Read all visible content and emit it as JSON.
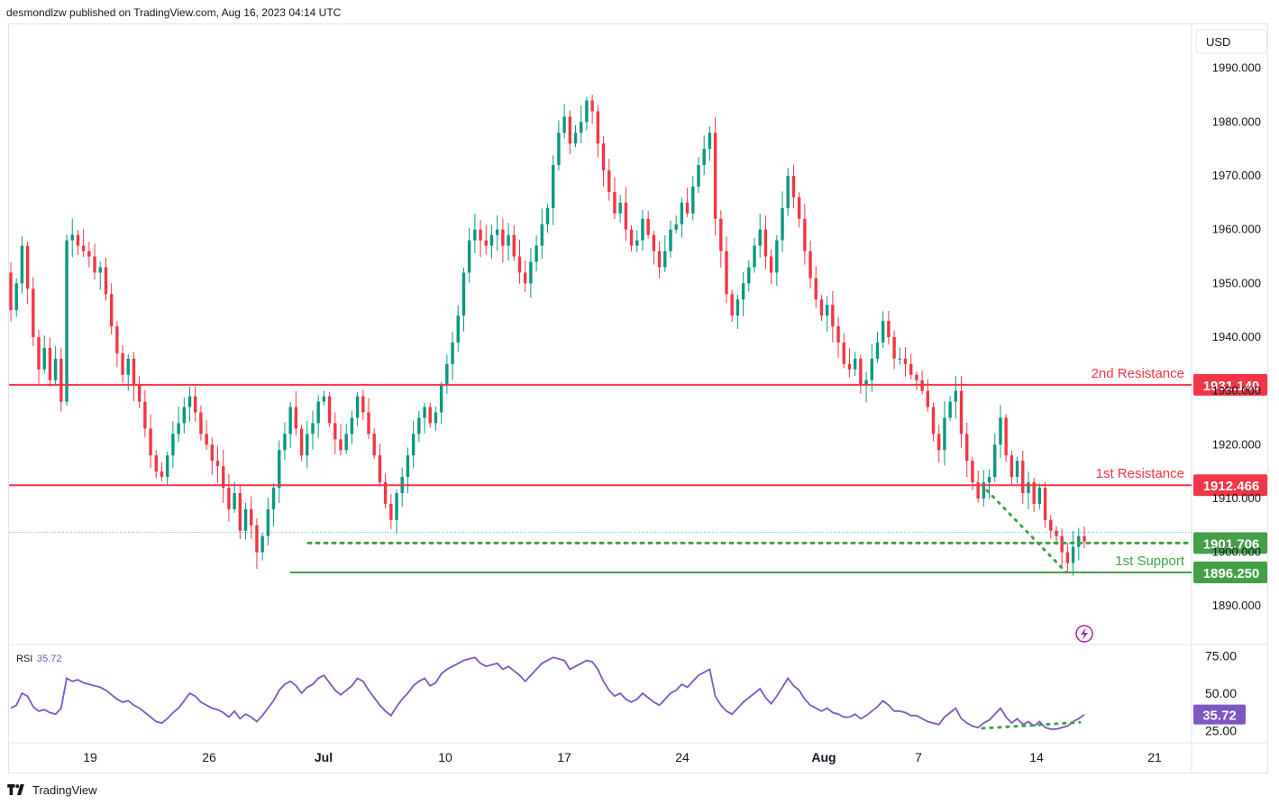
{
  "header": {
    "text": "desmondlzw published on TradingView.com, Aug 16, 2023 04:14 UTC"
  },
  "footer": {
    "brand": "TradingView"
  },
  "colors": {
    "up": "#089981",
    "down": "#f23645",
    "resistance": "#f23645",
    "support": "#43a047",
    "rsi": "#7e57c2",
    "grid": "#f0f3fa",
    "axis_text": "#131722"
  },
  "chart_data": [
    {
      "type": "candlestick",
      "currency_label": "USD",
      "ylim": [
        1883,
        1998
      ],
      "y_ticks": [
        "1890.000",
        "1900.000",
        "1910.000",
        "1920.000",
        "1930.000",
        "1940.000",
        "1950.000",
        "1960.000",
        "1970.000",
        "1980.000",
        "1990.000"
      ],
      "x_ticks": [
        "19",
        "26",
        "Jul",
        "10",
        "17",
        "24",
        "Aug",
        "7",
        "14",
        "21"
      ],
      "x_ticks_bold": [
        "Jul",
        "Aug"
      ],
      "close_series": [
        1945,
        1950,
        1957,
        1949,
        1940,
        1934,
        1938,
        1932,
        1936,
        1928,
        1958,
        1959,
        1957,
        1956,
        1955,
        1952,
        1953,
        1948,
        1942,
        1937,
        1933,
        1936,
        1931,
        1928,
        1923,
        1918,
        1915,
        1914,
        1918,
        1922,
        1924,
        1927,
        1929,
        1926,
        1922,
        1920,
        1917,
        1916,
        1912,
        1908,
        1911,
        1904,
        1908,
        1905,
        1900,
        1903,
        1908,
        1912,
        1919,
        1922,
        1927,
        1923,
        1918,
        1922,
        1924,
        1928,
        1929,
        1924,
        1921,
        1919,
        1922,
        1925,
        1929,
        1926,
        1922,
        1918,
        1913,
        1909,
        1906,
        1911,
        1914,
        1918,
        1922,
        1925,
        1927,
        1924,
        1926,
        1931,
        1935,
        1939,
        1944,
        1952,
        1958,
        1960,
        1958,
        1957,
        1959,
        1960,
        1957,
        1959,
        1955,
        1952,
        1950,
        1954,
        1957,
        1961,
        1964,
        1972,
        1978,
        1981,
        1976,
        1978,
        1980,
        1984,
        1982,
        1976,
        1971,
        1967,
        1963,
        1965,
        1960,
        1957,
        1958,
        1962,
        1959,
        1956,
        1953,
        1956,
        1960,
        1961,
        1965,
        1963,
        1968,
        1972,
        1975,
        1978,
        1962,
        1956,
        1948,
        1944,
        1947,
        1950,
        1953,
        1957,
        1960,
        1955,
        1952,
        1958,
        1964,
        1970,
        1966,
        1962,
        1956,
        1951,
        1947,
        1944,
        1946,
        1942,
        1939,
        1935,
        1934,
        1936,
        1931,
        1932,
        1936,
        1939,
        1943,
        1940,
        1936,
        1936,
        1935,
        1933,
        1932,
        1930,
        1927,
        1922,
        1919,
        1925,
        1928,
        1930,
        1922,
        1917,
        1913,
        1910,
        1913,
        1914,
        1920,
        1925,
        1918,
        1914,
        1917,
        1911,
        1913,
        1909,
        1912,
        1906,
        1904,
        1903,
        1900,
        1898,
        1901,
        1903,
        1902
      ],
      "lines": [
        {
          "label": "2nd Resistance",
          "value": "1931.140",
          "level": 1931.14,
          "color": "#f23645",
          "style": "solid"
        },
        {
          "label": "1st Resistance",
          "value": "1912.466",
          "level": 1912.466,
          "color": "#f23645",
          "style": "solid"
        },
        {
          "label": "",
          "value": "1901.706",
          "level": 1901.706,
          "color": "#43a047",
          "style": "dotted"
        },
        {
          "label": "1st Support",
          "value": "1896.250",
          "level": 1896.25,
          "color": "#43a047",
          "style": "solid"
        }
      ]
    },
    {
      "type": "line",
      "indicator": "RSI",
      "current_value": "35.72",
      "ylim": [
        18,
        82
      ],
      "y_ticks": [
        "25.00",
        "50.00",
        "75.00"
      ],
      "series": [
        40,
        42,
        50,
        48,
        41,
        38,
        39,
        37,
        36,
        40,
        60,
        58,
        59,
        57,
        56,
        55,
        54,
        52,
        49,
        46,
        44,
        45,
        42,
        40,
        37,
        34,
        31,
        30,
        33,
        37,
        40,
        45,
        50,
        48,
        44,
        42,
        40,
        39,
        37,
        34,
        38,
        33,
        36,
        34,
        31,
        35,
        40,
        45,
        52,
        56,
        58,
        55,
        50,
        54,
        56,
        60,
        62,
        57,
        52,
        49,
        52,
        55,
        60,
        58,
        52,
        47,
        42,
        38,
        35,
        41,
        46,
        50,
        55,
        58,
        60,
        55,
        57,
        63,
        66,
        68,
        70,
        72,
        73,
        74,
        70,
        68,
        69,
        70,
        66,
        68,
        65,
        62,
        58,
        62,
        66,
        70,
        72,
        74,
        73,
        72,
        66,
        68,
        70,
        72,
        71,
        66,
        58,
        52,
        48,
        50,
        46,
        44,
        46,
        50,
        47,
        44,
        42,
        46,
        50,
        52,
        56,
        54,
        58,
        62,
        64,
        66,
        48,
        42,
        38,
        36,
        40,
        44,
        47,
        50,
        53,
        47,
        43,
        48,
        54,
        60,
        55,
        52,
        46,
        42,
        40,
        38,
        40,
        37,
        36,
        34,
        34,
        36,
        33,
        35,
        38,
        41,
        45,
        42,
        38,
        38,
        37,
        35,
        35,
        33,
        31,
        30,
        29,
        34,
        37,
        40,
        33,
        30,
        28,
        27,
        30,
        32,
        36,
        40,
        34,
        30,
        33,
        29,
        31,
        28,
        31,
        27,
        26,
        26,
        27,
        28,
        31,
        33,
        35.72
      ],
      "divergence": {
        "price_from": 1911.5,
        "price_to": 1896.25,
        "rsi_from": 26.5,
        "rsi_to": 30.5
      }
    }
  ]
}
